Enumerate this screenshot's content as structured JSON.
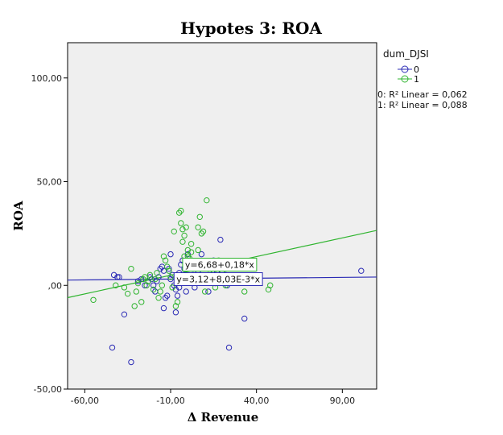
{
  "chart_data": {
    "type": "scatter",
    "title": "Hypotes 3: ROA",
    "xlabel": "Δ Revenue",
    "ylabel": "ROA",
    "xlim": [
      -70,
      110
    ],
    "ylim": [
      -50,
      117
    ],
    "x_ticks": [
      -60,
      -10,
      40,
      90
    ],
    "x_tick_labels": [
      "-60,00",
      "-10,00",
      "40,00",
      "90,00"
    ],
    "y_ticks": [
      -50,
      0,
      50,
      100
    ],
    "y_tick_labels": [
      "-50,00",
      ",00",
      "50,00",
      "100,00"
    ],
    "grid": false,
    "legend": {
      "title": "dum_DJSI",
      "placement": "top-right outside",
      "entries": [
        "0",
        "1"
      ],
      "fit_labels": [
        "0: R² Linear = 0,062",
        "1: R² Linear = 0,088"
      ]
    },
    "series": [
      {
        "name": "0",
        "color": "#2b2bb5",
        "fit": {
          "intercept": 3.12,
          "slope": 0.00803,
          "label": "y=3,12+8,03E-3*x"
        },
        "points": [
          [
            -44,
            -30
          ],
          [
            -43,
            5
          ],
          [
            -41,
            4
          ],
          [
            -40,
            4
          ],
          [
            -37,
            -14
          ],
          [
            -33,
            -37
          ],
          [
            -29,
            2
          ],
          [
            -27,
            3
          ],
          [
            -25,
            0
          ],
          [
            -23,
            2
          ],
          [
            -22,
            4
          ],
          [
            -21,
            3
          ],
          [
            -20,
            0
          ],
          [
            -19,
            -3
          ],
          [
            -18,
            2
          ],
          [
            -17,
            4
          ],
          [
            -16,
            8
          ],
          [
            -15,
            9
          ],
          [
            -14,
            -11
          ],
          [
            -14,
            7
          ],
          [
            -13,
            -6
          ],
          [
            -12,
            -5
          ],
          [
            -11,
            8
          ],
          [
            -10,
            15
          ],
          [
            -10,
            3
          ],
          [
            -9,
            5
          ],
          [
            -8,
            0
          ],
          [
            -7,
            -13
          ],
          [
            -7,
            -2
          ],
          [
            -6,
            -5
          ],
          [
            -5,
            6
          ],
          [
            -5,
            -1
          ],
          [
            -4,
            10
          ],
          [
            -3,
            12
          ],
          [
            -2,
            8
          ],
          [
            -1,
            -3
          ],
          [
            0,
            15
          ],
          [
            0,
            2
          ],
          [
            1,
            11
          ],
          [
            2,
            9
          ],
          [
            3,
            5
          ],
          [
            4,
            -1
          ],
          [
            6,
            7
          ],
          [
            8,
            15
          ],
          [
            10,
            4
          ],
          [
            12,
            -3
          ],
          [
            15,
            12
          ],
          [
            16,
            4
          ],
          [
            17,
            6
          ],
          [
            19,
            22
          ],
          [
            21,
            2
          ],
          [
            22,
            5
          ],
          [
            23,
            0
          ],
          [
            24,
            -30
          ],
          [
            33,
            -16
          ],
          [
            37,
            10
          ],
          [
            101,
            7
          ]
        ]
      },
      {
        "name": "1",
        "color": "#2fb42f",
        "fit": {
          "intercept": 6.68,
          "slope": 0.18,
          "label": "y=6,68+0,18*x"
        },
        "points": [
          [
            -55,
            -7
          ],
          [
            -42,
            0
          ],
          [
            -37,
            -1
          ],
          [
            -35,
            -4
          ],
          [
            -33,
            8
          ],
          [
            -31,
            -10
          ],
          [
            -30,
            -3
          ],
          [
            -29,
            1
          ],
          [
            -27,
            -8
          ],
          [
            -26,
            3
          ],
          [
            -25,
            4
          ],
          [
            -24,
            0
          ],
          [
            -23,
            2
          ],
          [
            -22,
            5
          ],
          [
            -20,
            -2
          ],
          [
            -19,
            3
          ],
          [
            -18,
            6
          ],
          [
            -17,
            -6
          ],
          [
            -16,
            -3
          ],
          [
            -15,
            0
          ],
          [
            -14,
            14
          ],
          [
            -13,
            12
          ],
          [
            -12,
            9
          ],
          [
            -11,
            7
          ],
          [
            -10,
            4
          ],
          [
            -9,
            -1
          ],
          [
            -8,
            26
          ],
          [
            -7,
            -10
          ],
          [
            -6,
            -8
          ],
          [
            -5,
            35
          ],
          [
            -4,
            30
          ],
          [
            -4,
            36
          ],
          [
            -3,
            21
          ],
          [
            -3,
            27
          ],
          [
            -2,
            24
          ],
          [
            -2,
            14
          ],
          [
            -1,
            28
          ],
          [
            0,
            14
          ],
          [
            0,
            17
          ],
          [
            1,
            13
          ],
          [
            1,
            11
          ],
          [
            2,
            20
          ],
          [
            2,
            16
          ],
          [
            3,
            10
          ],
          [
            4,
            9
          ],
          [
            5,
            11
          ],
          [
            6,
            17
          ],
          [
            6,
            28
          ],
          [
            7,
            33
          ],
          [
            8,
            25
          ],
          [
            9,
            26
          ],
          [
            10,
            -3
          ],
          [
            11,
            41
          ],
          [
            12,
            8
          ],
          [
            13,
            11
          ],
          [
            14,
            5
          ],
          [
            15,
            7
          ],
          [
            16,
            1
          ],
          [
            16,
            -1
          ],
          [
            18,
            12
          ],
          [
            20,
            6
          ],
          [
            22,
            0
          ],
          [
            24,
            10
          ],
          [
            33,
            -3
          ],
          [
            47,
            -2
          ],
          [
            48,
            0
          ]
        ]
      }
    ],
    "fit_annotations": [
      "y=6,68+0,18*x",
      "y=3,12+8,03E-3*x"
    ]
  }
}
